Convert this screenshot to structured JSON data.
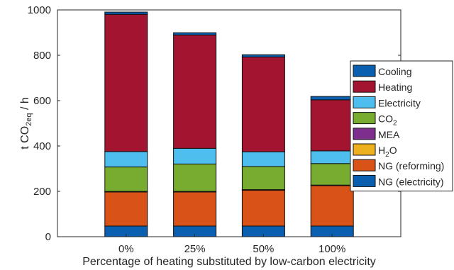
{
  "chart_data": {
    "type": "bar",
    "stacked": true,
    "categories": [
      "0%",
      "25%",
      "50%",
      "100%"
    ],
    "xlabel": "Percentage of heating substituted by low-carbon electricity",
    "ylabel_main": "t CO",
    "ylabel_sub": "2eq",
    "ylabel_suffix": " / h",
    "ylim": [
      0,
      1000
    ],
    "yticks": [
      0,
      200,
      400,
      600,
      800,
      1000
    ],
    "legend_position": "right",
    "series": [
      {
        "name": "NG (electricity)",
        "color": "#0a5fb0",
        "values": [
          47,
          47,
          47,
          47
        ]
      },
      {
        "name": "NG (reforming)",
        "color": "#d95319",
        "values": [
          150,
          150,
          158,
          178
        ]
      },
      {
        "name": "H",
        "name_sub": "2",
        "name_suffix": "O",
        "color": "#edb120",
        "values": [
          2,
          2,
          2,
          2
        ]
      },
      {
        "name": "MEA",
        "color": "#7e2f8e",
        "values": [
          0.5,
          0.5,
          0.5,
          0.5
        ]
      },
      {
        "name": "CO",
        "name_sub": "2",
        "color": "#77ac30",
        "values": [
          108,
          121,
          102,
          95
        ]
      },
      {
        "name": "Electricity",
        "color": "#4dbeee",
        "values": [
          68,
          69,
          65,
          56
        ]
      },
      {
        "name": "Heating",
        "color": "#a2142f",
        "values": [
          605,
          500,
          418,
          225
        ]
      },
      {
        "name": "Cooling",
        "color": "#0a5fb0",
        "values": [
          10,
          10,
          10,
          15
        ]
      }
    ]
  }
}
